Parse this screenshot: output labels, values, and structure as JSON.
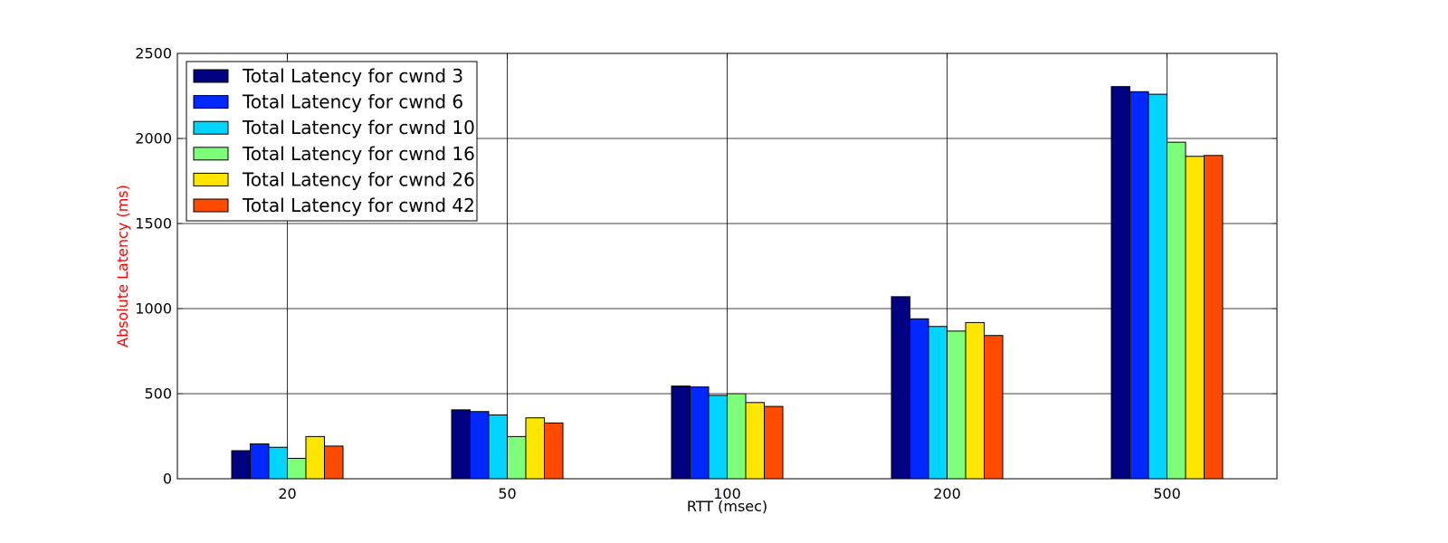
{
  "chart_data": {
    "type": "bar",
    "title": "",
    "xlabel": "RTT (msec)",
    "ylabel": "Absolute Latency (ms)",
    "ylabel_color": "#ff0000",
    "categories": [
      "20",
      "50",
      "100",
      "200",
      "500"
    ],
    "ylim": [
      0,
      2500
    ],
    "yticks": [
      0,
      500,
      1000,
      1500,
      2000,
      2500
    ],
    "grid": true,
    "legend_position": "top-left",
    "series": [
      {
        "name": "Total Latency for cwnd 3",
        "color": "#000080",
        "values": [
          165,
          405,
          545,
          1070,
          2305
        ]
      },
      {
        "name": "Total Latency for cwnd 6",
        "color": "#0028ff",
        "values": [
          205,
          395,
          540,
          940,
          2275
        ]
      },
      {
        "name": "Total Latency for cwnd 10",
        "color": "#00d4ff",
        "values": [
          185,
          375,
          490,
          895,
          2260
        ]
      },
      {
        "name": "Total Latency for cwnd 16",
        "color": "#7dff7a",
        "values": [
          120,
          248,
          500,
          868,
          1978
        ]
      },
      {
        "name": "Total Latency for cwnd 26",
        "color": "#ffe600",
        "values": [
          248,
          358,
          448,
          918,
          1895
        ]
      },
      {
        "name": "Total Latency for cwnd 42",
        "color": "#ff4a00",
        "values": [
          192,
          328,
          425,
          842,
          1900
        ]
      }
    ]
  }
}
